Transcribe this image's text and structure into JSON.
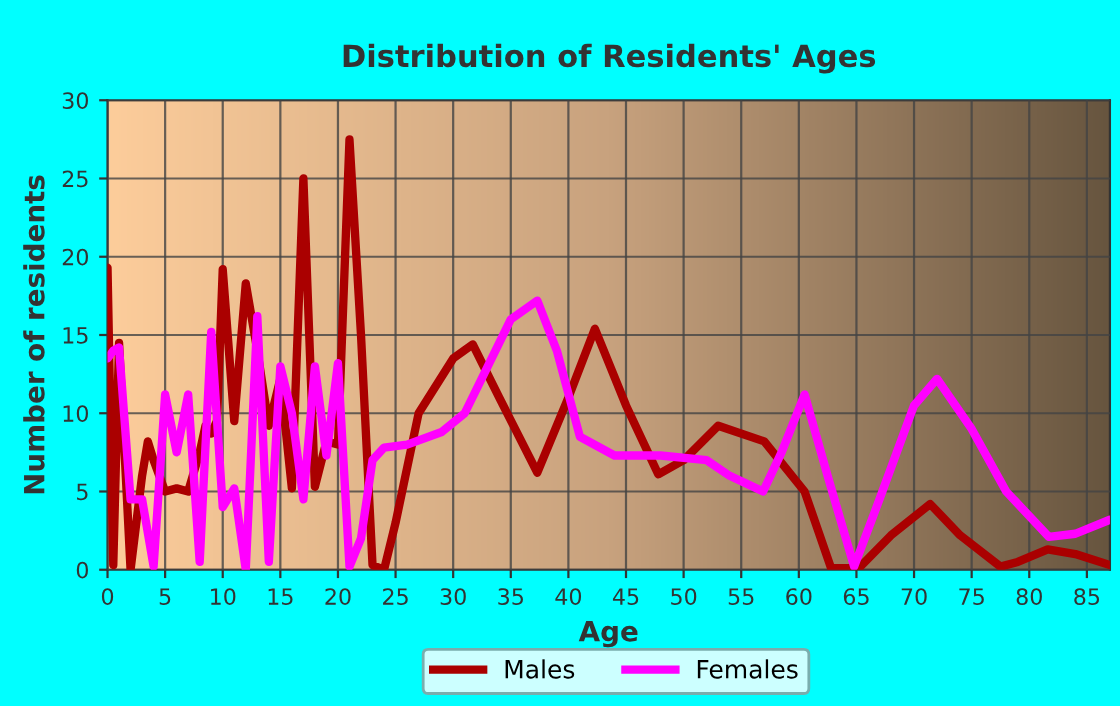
{
  "chart_data": {
    "type": "line",
    "title": "Distribution of Residents' Ages",
    "xlabel": "Age",
    "ylabel": "Number of residents",
    "xlim": [
      0,
      87
    ],
    "xticks": [
      0,
      5,
      10,
      15,
      20,
      25,
      30,
      35,
      40,
      45,
      50,
      55,
      60,
      65,
      70,
      75,
      80,
      85
    ],
    "ylim": [
      0,
      30
    ],
    "yticks": [
      0,
      5,
      10,
      15,
      20,
      25,
      30
    ],
    "grid": true,
    "legend": "bottom",
    "series": [
      {
        "name": "Males",
        "color": "#aa0000",
        "x": [
          0,
          0.5,
          1,
          2,
          3,
          3.5,
          4,
          5,
          6,
          7,
          8,
          8.5,
          9,
          9.5,
          10,
          11,
          12,
          13,
          14,
          15,
          16,
          17,
          18,
          19,
          20,
          21,
          22,
          23,
          24,
          25,
          27,
          30,
          31.7,
          34,
          37.3,
          40,
          42.3,
          45,
          47.8,
          50,
          53,
          57,
          60.5,
          62.8,
          65.2,
          68,
          71.4,
          74,
          77.5,
          79,
          81.6,
          84,
          87
        ],
        "values": [
          19.3,
          0.3,
          14.5,
          0,
          6,
          8.2,
          7,
          5,
          5.2,
          5,
          7.5,
          9.2,
          8.7,
          9.5,
          19.2,
          9.5,
          18.3,
          14,
          9.2,
          12.2,
          5.2,
          25,
          5.3,
          8.2,
          8,
          27.5,
          15,
          0.3,
          0,
          3,
          10,
          13.5,
          14.4,
          11,
          6.2,
          11,
          15.4,
          10.5,
          6.1,
          7,
          9.2,
          8.2,
          5,
          0.1,
          0.1,
          2.2,
          4.2,
          2.2,
          0.2,
          0.5,
          1.3,
          1,
          0.3
        ]
      },
      {
        "name": "Females",
        "color": "#ff00ff",
        "x": [
          0,
          0.5,
          1,
          2,
          3,
          4,
          5,
          6,
          7,
          8,
          9,
          10,
          11,
          12,
          13,
          14,
          15,
          16,
          17,
          18,
          19,
          20,
          21,
          22,
          23,
          24,
          26,
          29,
          31,
          33,
          35,
          37.3,
          39,
          41,
          44,
          48,
          52,
          54,
          56.9,
          58.5,
          60.5,
          62.5,
          64.8,
          67,
          70,
          72,
          75,
          78,
          81.7,
          84,
          87
        ],
        "values": [
          13.5,
          14,
          14.2,
          4.5,
          4.5,
          0.2,
          11.2,
          7.5,
          11.2,
          0.5,
          15.2,
          4,
          5.2,
          0,
          16.2,
          0.5,
          13,
          10,
          4.5,
          13,
          7.3,
          13.2,
          0.2,
          2,
          7,
          7.8,
          8,
          8.8,
          10,
          13,
          16,
          17.2,
          14,
          8.5,
          7.3,
          7.3,
          7,
          6,
          5,
          7.5,
          11.2,
          6,
          0.2,
          4.5,
          10.5,
          12.2,
          9,
          5,
          2.1,
          2.3,
          3.2
        ]
      }
    ]
  }
}
